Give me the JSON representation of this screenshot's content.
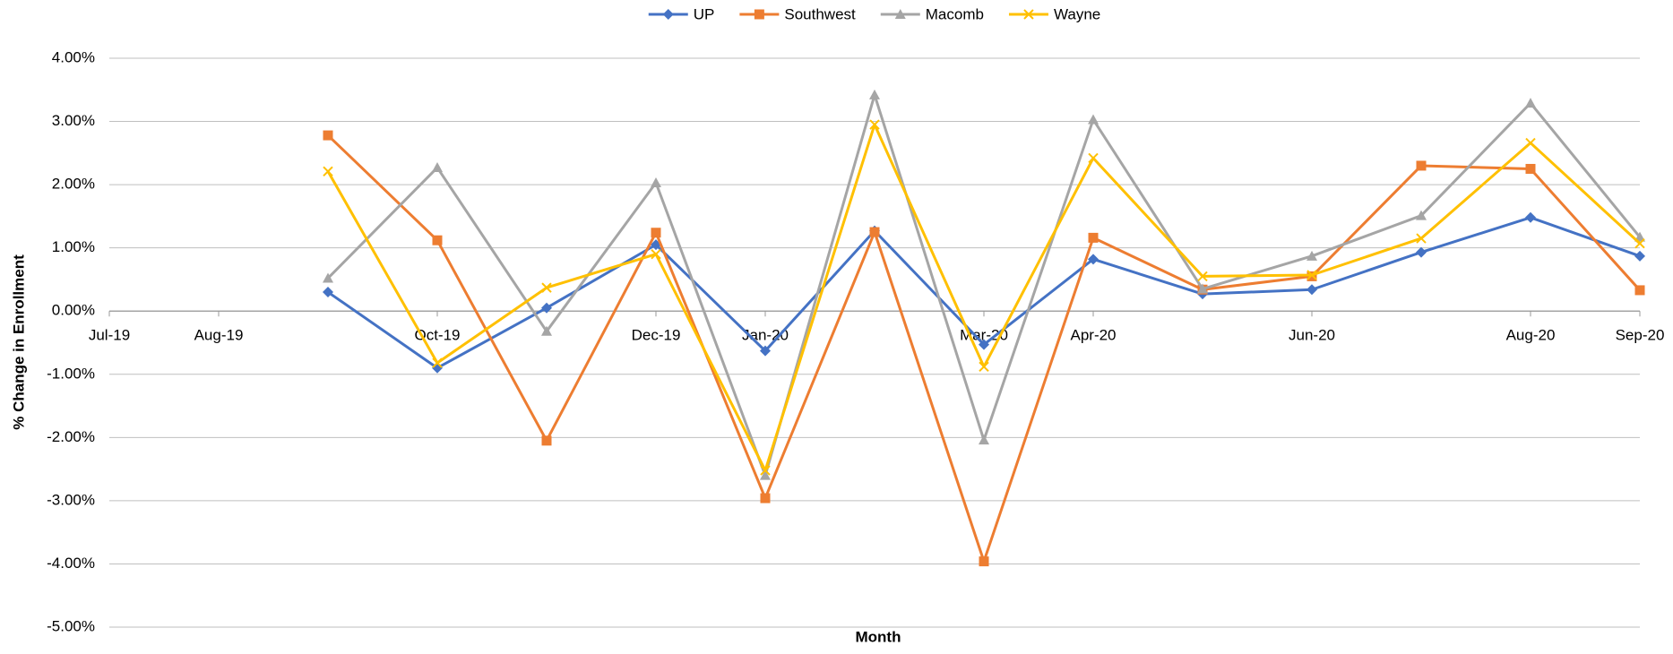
{
  "chart_data": {
    "type": "line",
    "x_label": "Month",
    "y_label": "% Change in Enrollment",
    "x": [
      "2019-09",
      "2019-10",
      "2019-11",
      "2019-12",
      "2020-01",
      "2020-02",
      "2020-03",
      "2020-04",
      "2020-05",
      "2020-06",
      "2020-07",
      "2020-08",
      "2020-09"
    ],
    "series": [
      {
        "name": "UP",
        "color": "#4472c4",
        "marker": "diamond",
        "values": [
          0.3,
          -0.9,
          0.05,
          1.05,
          -0.63,
          1.27,
          -0.53,
          0.82,
          0.27,
          0.34,
          0.93,
          1.48,
          0.87
        ]
      },
      {
        "name": "Southwest",
        "color": "#ed7d31",
        "marker": "square",
        "values": [
          2.78,
          1.12,
          -2.05,
          1.24,
          -2.96,
          1.25,
          -3.96,
          1.16,
          0.34,
          0.55,
          2.3,
          2.25,
          0.33
        ]
      },
      {
        "name": "Macomb",
        "color": "#a5a5a5",
        "marker": "triangle",
        "values": [
          0.52,
          2.27,
          -0.32,
          2.03,
          -2.6,
          3.42,
          -2.04,
          3.03,
          0.35,
          0.87,
          1.51,
          3.29,
          1.17
        ]
      },
      {
        "name": "Wayne",
        "color": "#ffc000",
        "marker": "x",
        "values": [
          2.21,
          -0.82,
          0.37,
          0.9,
          -2.52,
          2.95,
          -0.88,
          2.42,
          0.55,
          0.57,
          1.15,
          2.66,
          1.07
        ]
      }
    ],
    "xlim": [
      "2019-07",
      "2020-09"
    ],
    "xticks": [
      {
        "value": "2019-07",
        "label": "Jul-19"
      },
      {
        "value": "2019-08",
        "label": "Aug-19"
      },
      {
        "value": "2019-10",
        "label": "Oct-19"
      },
      {
        "value": "2019-12",
        "label": "Dec-19"
      },
      {
        "value": "2020-01",
        "label": "Jan-20"
      },
      {
        "value": "2020-03",
        "label": "Mar-20"
      },
      {
        "value": "2020-04",
        "label": "Apr-20"
      },
      {
        "value": "2020-06",
        "label": "Jun-20"
      },
      {
        "value": "2020-08",
        "label": "Aug-20"
      },
      {
        "value": "2020-09",
        "label": "Sep-20"
      }
    ],
    "ylim": [
      -5,
      4
    ],
    "yticks": [
      {
        "value": 4,
        "label": "4.00%"
      },
      {
        "value": 3,
        "label": "3.00%"
      },
      {
        "value": 2,
        "label": "2.00%"
      },
      {
        "value": 1,
        "label": "1.00%"
      },
      {
        "value": 0,
        "label": "0.00%"
      },
      {
        "value": -1,
        "label": "-1.00%"
      },
      {
        "value": -2,
        "label": "-2.00%"
      },
      {
        "value": -3,
        "label": "-3.00%"
      },
      {
        "value": -4,
        "label": "-4.00%"
      },
      {
        "value": -5,
        "label": "-5.00%"
      }
    ],
    "grid": true,
    "legend": "top"
  }
}
